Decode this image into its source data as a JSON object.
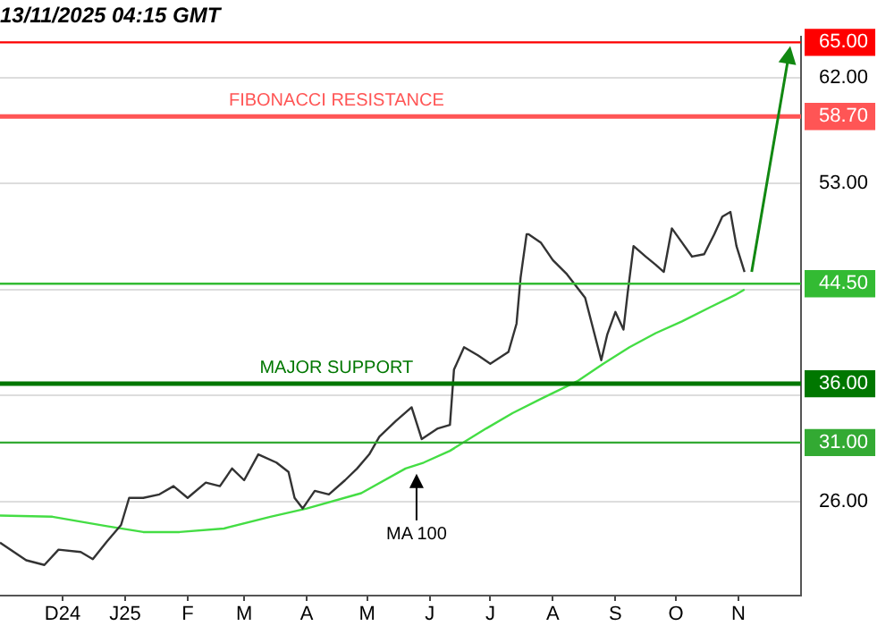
{
  "chart_data": {
    "type": "line",
    "title": "13/11/2025 04:15 GMT",
    "series": [
      {
        "type": "line",
        "color": "#333333",
        "x": [
          "2024-10-31",
          "2024-11-13",
          "2024-11-22",
          "2024-11-29",
          "2024-12-10",
          "2024-12-16",
          "2024-12-23",
          "2024-12-30",
          "2025-01-03",
          "2025-01-10",
          "2025-01-18",
          "2025-01-25",
          "2025-02-01",
          "2025-02-10",
          "2025-02-17",
          "2025-02-23",
          "2025-03-01",
          "2025-03-08",
          "2025-03-17",
          "2025-03-23",
          "2025-03-26",
          "2025-03-30",
          "2025-04-05",
          "2025-04-12",
          "2025-04-20",
          "2025-04-26",
          "2025-05-02",
          "2025-05-07",
          "2025-05-15",
          "2025-05-23",
          "2025-05-28",
          "2025-06-05",
          "2025-06-11",
          "2025-06-13",
          "2025-06-18",
          "2025-06-25",
          "2025-07-01",
          "2025-07-10",
          "2025-07-14",
          "2025-07-16",
          "2025-07-19",
          "2025-07-20",
          "2025-07-26",
          "2025-08-01",
          "2025-08-08",
          "2025-08-17",
          "2025-08-25",
          "2025-08-28",
          "2025-09-01",
          "2025-09-05",
          "2025-09-07",
          "2025-09-10",
          "2025-09-16",
          "2025-09-21",
          "2025-09-25",
          "2025-09-29",
          "2025-10-04",
          "2025-10-09",
          "2025-10-15",
          "2025-10-20",
          "2025-10-24",
          "2025-10-28",
          "2025-10-31",
          "2025-11-04"
        ],
        "values": [
          22.5,
          21.0,
          20.6,
          21.9,
          21.7,
          21.1,
          22.6,
          24.0,
          26.3,
          26.3,
          26.6,
          27.3,
          26.3,
          27.6,
          27.3,
          28.8,
          27.8,
          30.0,
          29.3,
          28.5,
          26.3,
          25.4,
          26.9,
          26.6,
          27.8,
          28.8,
          30.0,
          31.5,
          32.8,
          34.0,
          31.3,
          32.2,
          32.5,
          37.2,
          39.1,
          38.4,
          37.7,
          38.7,
          41.1,
          45.0,
          48.7,
          48.7,
          48.0,
          46.5,
          45.3,
          43.3,
          38.0,
          40.2,
          42.1,
          40.6,
          43.6,
          47.7,
          46.8,
          46.1,
          45.5,
          49.2,
          48.0,
          46.8,
          47.0,
          48.7,
          50.2,
          50.6,
          47.7,
          45.5
        ]
      },
      {
        "type": "line",
        "color": "#44dd44",
        "x": [
          "2024-10-31",
          "2024-11-26",
          "2024-12-23",
          "2025-01-10",
          "2025-01-28",
          "2025-02-19",
          "2025-03-14",
          "2025-04-01",
          "2025-04-28",
          "2025-05-20",
          "2025-05-29",
          "2025-06-11",
          "2025-06-29",
          "2025-07-12",
          "2025-07-26",
          "2025-08-13",
          "2025-08-26",
          "2025-09-08",
          "2025-09-21",
          "2025-10-04",
          "2025-10-18",
          "2025-10-31",
          "2025-11-04"
        ],
        "values": [
          24.8,
          24.7,
          23.9,
          23.4,
          23.4,
          23.7,
          24.7,
          25.4,
          26.7,
          28.8,
          29.3,
          30.3,
          32.2,
          33.5,
          34.7,
          36.2,
          37.7,
          39.1,
          40.3,
          41.3,
          42.5,
          43.6,
          44.0
        ]
      }
    ],
    "xlim": [
      "2024-10-31",
      "2025-12-02"
    ],
    "xticks": [
      {
        "value": "2024-12-01",
        "label": "D24"
      },
      {
        "value": "2025-01-01",
        "label": "J25"
      },
      {
        "value": "2025-02-01",
        "label": "F"
      },
      {
        "value": "2025-03-01",
        "label": "M"
      },
      {
        "value": "2025-04-01",
        "label": "A"
      },
      {
        "value": "2025-05-01",
        "label": "M"
      },
      {
        "value": "2025-06-01",
        "label": "J"
      },
      {
        "value": "2025-07-01",
        "label": "J"
      },
      {
        "value": "2025-08-01",
        "label": "A"
      },
      {
        "value": "2025-09-01",
        "label": "S"
      },
      {
        "value": "2025-10-01",
        "label": "O"
      },
      {
        "value": "2025-11-01",
        "label": "N"
      }
    ],
    "ylim": [
      18,
      65.5
    ],
    "yticks": [
      {
        "value": 26,
        "label": "26.00"
      },
      {
        "value": 31,
        "label": "31.00"
      },
      {
        "value": 35,
        "label": null
      },
      {
        "value": 36,
        "label": "36.00"
      },
      {
        "value": 44,
        "label": null
      },
      {
        "value": 44.5,
        "label": "44.50"
      },
      {
        "value": 53,
        "label": "53.00"
      },
      {
        "value": 58.7,
        "label": "58.70"
      },
      {
        "value": 62,
        "label": "62.00"
      },
      {
        "value": 65,
        "label": "65.00"
      }
    ],
    "grid": "y",
    "ref_lines": [
      {
        "axis": "y",
        "value": 65,
        "color": "#ff0000"
      },
      {
        "axis": "y",
        "value": 58.7,
        "label": "FIBONACCI RESISTANCE",
        "color": "#ff5555"
      },
      {
        "axis": "y",
        "value": 44.5,
        "color": "#33bb33"
      },
      {
        "axis": "y",
        "value": 36,
        "label": "MAJOR SUPPORT",
        "color": "#007700"
      },
      {
        "axis": "y",
        "value": 31,
        "color": "#33aa33"
      }
    ],
    "annotations": [
      "MA 100"
    ]
  }
}
